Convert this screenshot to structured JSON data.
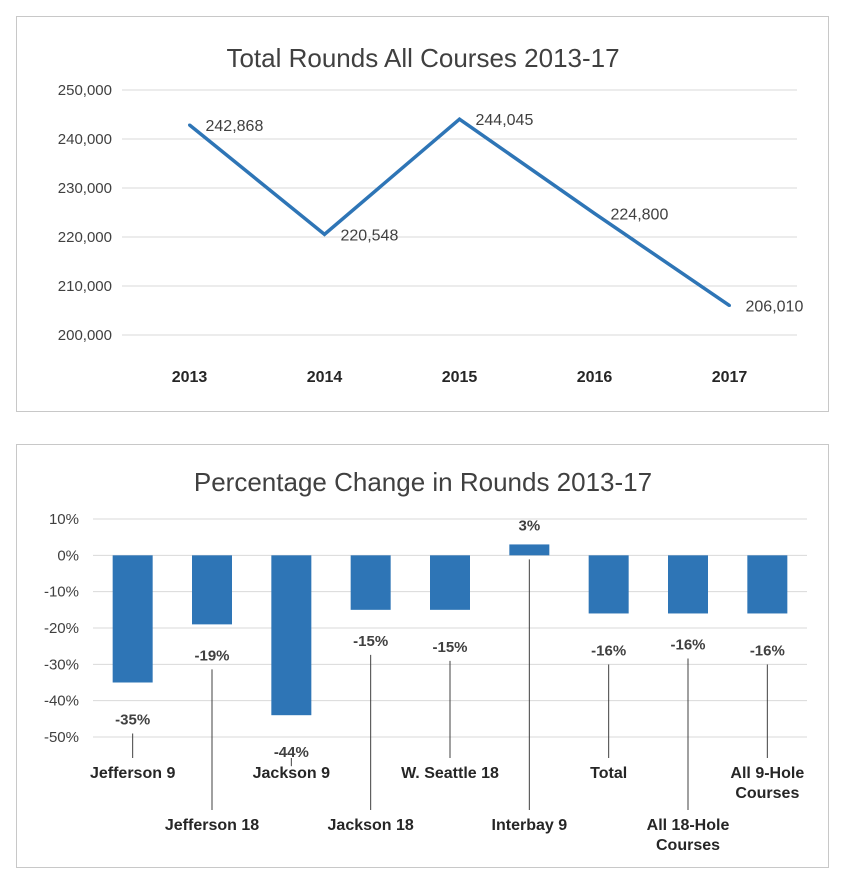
{
  "chart_data": [
    {
      "type": "line",
      "title": "Total Rounds All Courses 2013-17",
      "categories": [
        "2013",
        "2014",
        "2015",
        "2016",
        "2017"
      ],
      "values": [
        242868,
        220548,
        244045,
        224800,
        206010
      ],
      "data_labels": [
        "242,868",
        "220,548",
        "244,045",
        "224,800",
        "206,010"
      ],
      "ylim": [
        200000,
        250000
      ],
      "yticks": [
        "200,000",
        "210,000",
        "220,000",
        "230,000",
        "240,000",
        "250,000"
      ],
      "xlabel": "",
      "ylabel": "",
      "grid": true,
      "color": "#2e75b6"
    },
    {
      "type": "bar",
      "title": "Percentage Change in Rounds 2013-17",
      "categories": [
        "Jefferson 9",
        "Jefferson 18",
        "Jackson 9",
        "Jackson 18",
        "W. Seattle 18",
        "Interbay 9",
        "Total",
        "All 18-Hole Courses",
        "All 9-Hole Courses"
      ],
      "category_lines": [
        [
          "Jefferson 9"
        ],
        [
          "Jefferson 18"
        ],
        [
          "Jackson 9"
        ],
        [
          "Jackson 18"
        ],
        [
          "W. Seattle 18"
        ],
        [
          "Interbay 9"
        ],
        [
          "Total"
        ],
        [
          "All 18-Hole",
          "Courses"
        ],
        [
          "All 9-Hole",
          "Courses"
        ]
      ],
      "values": [
        -35,
        -19,
        -44,
        -15,
        -15,
        3,
        -16,
        -16,
        -16
      ],
      "data_labels": [
        "-35%",
        "-19%",
        "-44%",
        "-15%",
        "-15%",
        "3%",
        "-16%",
        "-16%",
        "-16%"
      ],
      "ylim": [
        -50,
        10
      ],
      "yticks": [
        "10%",
        "0%",
        "-10%",
        "-20%",
        "-30%",
        "-40%",
        "-50%"
      ],
      "xlabel": "",
      "ylabel": "",
      "grid": true,
      "color": "#2e75b6"
    }
  ]
}
